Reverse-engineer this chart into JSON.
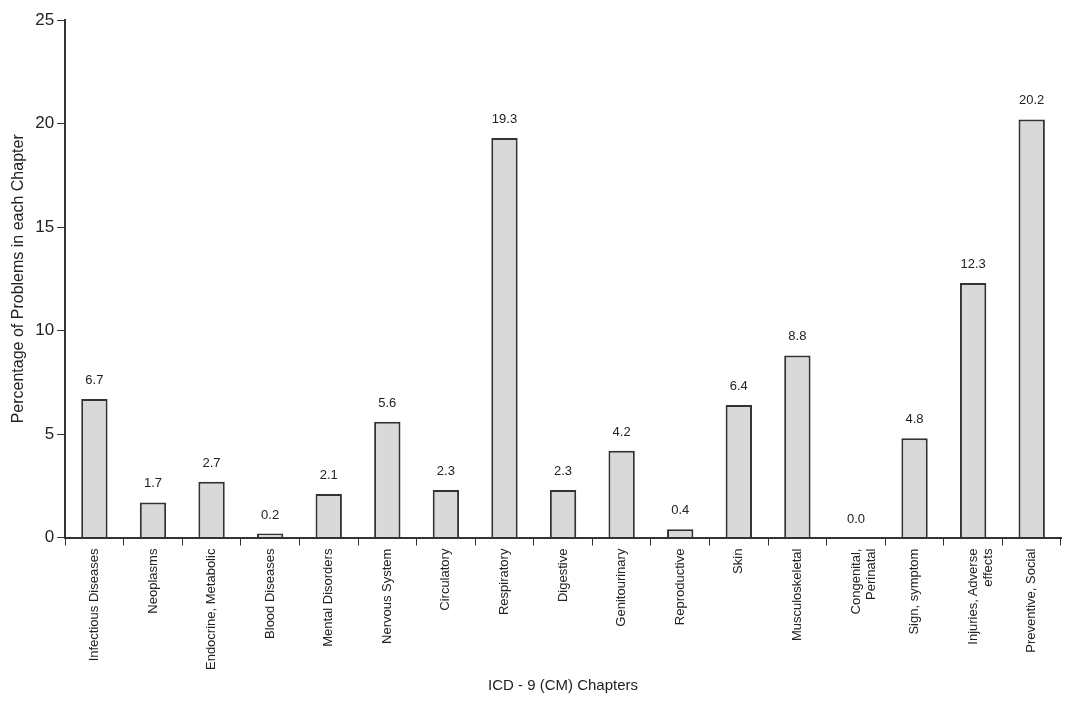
{
  "chart_data": {
    "type": "bar",
    "xlabel": "ICD - 9 (CM) Chapters",
    "ylabel": "Percentage of Problems in each Chapter",
    "categories": [
      "Infectious Diseases",
      "Neoplasms",
      "Endocrine, Metabolic",
      "Blood Diseases",
      "Mental Disorders",
      "Nervous System",
      "Circulatory",
      "Respiratory",
      "Digestive",
      "Genitourinary",
      "Reproductive",
      "Skin",
      "Musculoskeletal",
      "Congenital, Perinatal",
      "Sign, symptom",
      "Injuries, Adverse effects",
      "Preventive, Social"
    ],
    "values": [
      6.7,
      1.7,
      2.7,
      0.2,
      2.1,
      5.6,
      2.3,
      19.3,
      2.3,
      4.2,
      0.4,
      6.4,
      8.8,
      0.0,
      4.8,
      12.3,
      20.2
    ],
    "value_labels": [
      "6.7",
      "1.7",
      "2.7",
      "0.2",
      "2.1",
      "5.6",
      "2.3",
      "19.3",
      "2.3",
      "4.2",
      "0.4",
      "6.4",
      "8.8",
      "0.0",
      "4.8",
      "12.3",
      "20.2"
    ],
    "color": "#d9d9d9",
    "ylim": [
      0,
      25
    ],
    "yticks": [
      0,
      5,
      10,
      15,
      20,
      25
    ],
    "grid": false,
    "legend": false
  }
}
